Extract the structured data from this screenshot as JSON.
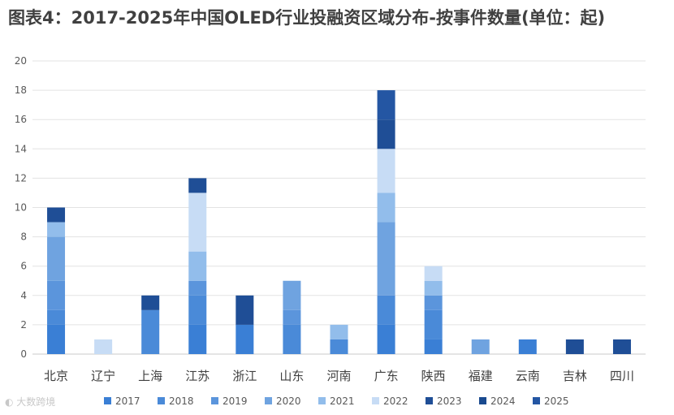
{
  "chart_data": {
    "type": "bar",
    "stacked": true,
    "title": "图表4：2017-2025年中国OLED行业投融资区域分布-按事件数量(单位：起)",
    "categories": [
      "北京",
      "辽宁",
      "上海",
      "江苏",
      "浙江",
      "山东",
      "河南",
      "广东",
      "陕西",
      "福建",
      "云南",
      "吉林",
      "四川"
    ],
    "series": [
      {
        "name": "2017",
        "color": "#3a7fd5",
        "values": [
          2,
          0,
          0,
          2,
          2,
          0,
          0,
          2,
          1,
          0,
          1,
          0,
          0
        ]
      },
      {
        "name": "2018",
        "color": "#4a8ad8",
        "values": [
          1,
          0,
          3,
          2,
          0,
          2,
          1,
          2,
          2,
          0,
          0,
          0,
          0
        ]
      },
      {
        "name": "2019",
        "color": "#5b95dc",
        "values": [
          2,
          0,
          0,
          1,
          0,
          1,
          0,
          0,
          1,
          0,
          0,
          0,
          0
        ]
      },
      {
        "name": "2020",
        "color": "#6fa3e0",
        "values": [
          3,
          0,
          0,
          0,
          0,
          2,
          0,
          5,
          0,
          1,
          0,
          0,
          0
        ]
      },
      {
        "name": "2021",
        "color": "#92bdeb",
        "values": [
          1,
          0,
          0,
          2,
          0,
          0,
          1,
          2,
          1,
          0,
          0,
          0,
          0
        ]
      },
      {
        "name": "2022",
        "color": "#c7dcf5",
        "values": [
          0,
          1,
          0,
          4,
          0,
          0,
          0,
          3,
          1,
          0,
          0,
          0,
          0
        ]
      },
      {
        "name": "2023",
        "color": "#1f4e96",
        "values": [
          1,
          0,
          1,
          1,
          2,
          0,
          0,
          2,
          0,
          0,
          0,
          1,
          1
        ]
      },
      {
        "name": "2024",
        "color": "#1a4a8f",
        "values": [
          0,
          0,
          0,
          0,
          0,
          0,
          0,
          0,
          0,
          0,
          0,
          0,
          0
        ]
      },
      {
        "name": "2025",
        "color": "#2456a3",
        "values": [
          0,
          0,
          0,
          0,
          0,
          0,
          0,
          2,
          0,
          0,
          0,
          0,
          0
        ]
      }
    ],
    "yticks": [
      "0",
      "2",
      "4",
      "6",
      "8",
      "10",
      "12",
      "14",
      "16",
      "18",
      "20"
    ],
    "ylim": [
      0,
      20
    ],
    "grid": true,
    "legend_position": "bottom"
  },
  "footer": {
    "watermark": "大数跨境"
  }
}
